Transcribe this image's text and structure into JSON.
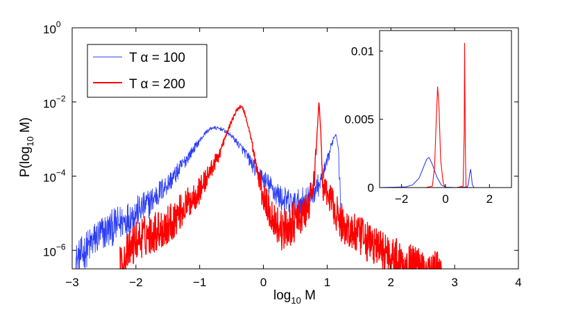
{
  "chart_data": [
    {
      "type": "line",
      "scale": "log-y",
      "xlabel": "log",
      "xlabel_sub": "10",
      "xlabel_tail": " M",
      "ylabel": "P(log",
      "ylabel_sub": "10",
      "ylabel_tail": " M)",
      "xlim": [
        -3,
        4
      ],
      "ylim_log10": [
        -6.5,
        0
      ],
      "x_ticks": [
        "−3",
        "−2",
        "−1",
        "0",
        "1",
        "2",
        "3",
        "4"
      ],
      "y_ticks": [
        {
          "base": "10",
          "exp": "0",
          "value": 0
        },
        {
          "base": "10",
          "exp": "−2",
          "value": -2
        },
        {
          "base": "10",
          "exp": "−4",
          "value": -4
        },
        {
          "base": "10",
          "exp": "−6",
          "value": -6
        }
      ],
      "legend": [
        {
          "label": "T α = 100",
          "color": "#2b3df5"
        },
        {
          "label": "T α  = 200",
          "color": "#ff0000"
        }
      ],
      "series": [
        {
          "name": "T α = 100",
          "color": "#2b3df5",
          "noise": 0.5,
          "x": [
            -2.95,
            -2.6,
            -2.2,
            -1.8,
            -1.4,
            -1.1,
            -0.9,
            -0.8,
            -0.65,
            -0.5,
            -0.3,
            -0.1,
            0.1,
            0.3,
            0.5,
            0.7,
            0.9,
            1.0,
            1.05,
            1.1,
            1.14,
            1.17,
            1.19,
            1.21,
            1.22
          ],
          "log10y": [
            -6.2,
            -5.5,
            -5.1,
            -4.65,
            -3.95,
            -3.25,
            -2.8,
            -2.68,
            -2.72,
            -2.9,
            -3.3,
            -3.85,
            -4.2,
            -4.55,
            -4.7,
            -4.5,
            -4.1,
            -3.6,
            -3.25,
            -2.95,
            -2.85,
            -3.1,
            -3.8,
            -4.6,
            -5.5
          ]
        },
        {
          "name": "T α  = 200",
          "color": "#ff0000",
          "noise": 0.55,
          "x": [
            -2.25,
            -2.0,
            -1.5,
            -1.0,
            -0.7,
            -0.5,
            -0.4,
            -0.35,
            -0.3,
            -0.2,
            -0.1,
            0.0,
            0.15,
            0.3,
            0.5,
            0.7,
            0.8,
            0.85,
            0.87,
            0.9,
            0.93,
            0.98,
            1.05,
            1.2,
            1.4,
            1.6,
            1.8,
            2.0,
            2.2,
            2.5,
            2.8
          ],
          "log10y": [
            -6.3,
            -5.6,
            -5.2,
            -4.3,
            -3.4,
            -2.5,
            -2.15,
            -2.1,
            -2.25,
            -2.9,
            -3.8,
            -4.5,
            -5.0,
            -5.35,
            -5.1,
            -4.8,
            -4.0,
            -2.6,
            -1.95,
            -2.8,
            -4.2,
            -4.4,
            -4.5,
            -5.1,
            -5.4,
            -5.6,
            -5.8,
            -6.0,
            -6.2,
            -6.35,
            -6.45
          ]
        }
      ]
    },
    {
      "type": "line",
      "scale": "linear",
      "xlim": [
        -3,
        3
      ],
      "ylim": [
        0,
        0.0115
      ],
      "x_ticks": [
        "−2",
        "0",
        "2"
      ],
      "y_ticks": [
        "0",
        "0.005",
        "0.01"
      ],
      "series": [
        {
          "name": "T α = 100",
          "color": "#2b3df5",
          "x": [
            -3.0,
            -1.8,
            -1.5,
            -1.2,
            -1.0,
            -0.85,
            -0.75,
            -0.6,
            -0.4,
            -0.2,
            0.0,
            0.5,
            1.0,
            1.05,
            1.1,
            1.14,
            1.18,
            1.22,
            1.3,
            3.0
          ],
          "y": [
            0,
            5e-05,
            0.0002,
            0.0007,
            0.0015,
            0.0021,
            0.0022,
            0.0017,
            0.0008,
            0.0002,
            3e-05,
            0,
            5e-05,
            0.0004,
            0.001,
            0.00135,
            0.0008,
            0.0002,
            0,
            0
          ]
        },
        {
          "name": "T α  = 200",
          "color": "#ff0000",
          "x": [
            -3.0,
            -0.9,
            -0.6,
            -0.5,
            -0.42,
            -0.36,
            -0.3,
            -0.22,
            -0.1,
            0.0,
            0.5,
            0.8,
            0.85,
            0.87,
            0.9,
            0.93,
            1.0,
            3.0
          ],
          "y": [
            0,
            0,
            0.0001,
            0.0015,
            0.005,
            0.0074,
            0.006,
            0.002,
            0.0003,
            0,
            0,
            0.0001,
            0.004,
            0.0106,
            0.003,
            0.0001,
            0,
            0
          ]
        }
      ]
    }
  ]
}
